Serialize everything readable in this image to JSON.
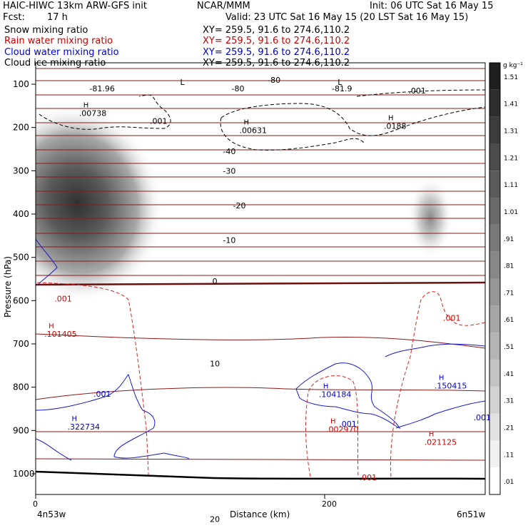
{
  "header": {
    "model": "HAIC-HIWC 13km ARW-GFS init",
    "org": "NCAR/MMM",
    "init": "Init: 06 UTC Sat 16 May 15",
    "fcst_label": "Fcst:",
    "fcst_value": "17 h",
    "valid": "Valid: 23 UTC Sat 16 May 15 (20 LST Sat 16 May 15)"
  },
  "fields": [
    {
      "name": "Snow mixing ratio",
      "xy": "XY= 259.5, 91.6 to 274.6,110.2",
      "color": "#000000"
    },
    {
      "name": "Rain water mixing ratio",
      "xy": "XY= 259.5, 91.6 to 274.6,110.2",
      "color": "#cc0000"
    },
    {
      "name": "Cloud water mixing ratio",
      "xy": "XY= 259.5, 91.6 to 274.6,110.2",
      "color": "#0000cc"
    },
    {
      "name": "Cloud ice mixing ratio",
      "xy": "XY= 259.5, 91.6 to 274.6,110.2",
      "color": "#000000"
    }
  ],
  "chart_data": {
    "type": "heatmap",
    "xlabel": "Distance (km)",
    "ylabel": "Pressure (hPa)",
    "xlim": [
      0,
      300
    ],
    "ylim": [
      1050,
      50
    ],
    "x_ticks": [
      "0",
      "200"
    ],
    "x_tick_values": [
      0,
      200
    ],
    "y_ticks": [
      "100",
      "200",
      "300",
      "400",
      "500",
      "600",
      "700",
      "800",
      "900",
      "1000"
    ],
    "y_tick_values": [
      100,
      200,
      300,
      400,
      500,
      600,
      700,
      800,
      900,
      1000
    ],
    "left_endpoint": "4n53w",
    "right_endpoint": "6n51w",
    "colorbar": {
      "unit": "g kg⁻¹",
      "levels": [
        "1.51",
        "1.41",
        "1.31",
        "1.21",
        "1.11",
        "1.01",
        ".91",
        ".81",
        ".71",
        ".61",
        ".51",
        ".41",
        ".31",
        ".21",
        ".11",
        ".01"
      ]
    },
    "snow_shading": [
      {
        "x": 28,
        "p": 330,
        "max": 1.51
      },
      {
        "x": 272,
        "p": 400,
        "max": 0.51
      }
    ],
    "temperature_labels": [
      {
        "text": "-81.96",
        "x": 46,
        "p": 110
      },
      {
        "text": "-80",
        "x": 140,
        "p": 110
      },
      {
        "text": "-80",
        "x": 165,
        "p": 90
      },
      {
        "text": "-81.9",
        "x": 212,
        "p": 110
      },
      {
        "text": "-40",
        "x": 134,
        "p": 255
      },
      {
        "text": "-30",
        "x": 134,
        "p": 300
      },
      {
        "text": "-20",
        "x": 141,
        "p": 380
      },
      {
        "text": "-10",
        "x": 134,
        "p": 460
      },
      {
        "text": "0",
        "x": 124,
        "p": 555
      },
      {
        "text": "10",
        "x": 124,
        "p": 745
      },
      {
        "text": "20",
        "x": 124,
        "p": 1105
      }
    ],
    "lows": [
      {
        "text": "L",
        "x": 100,
        "p": 95
      },
      {
        "text": "L",
        "x": 209,
        "p": 95
      }
    ],
    "highs": [
      {
        "value": ".00738",
        "x": 29,
        "p": 160,
        "field": "cloud ice"
      },
      {
        "value": ".00631",
        "x": 140,
        "p": 200,
        "field": "cloud ice"
      },
      {
        "value": ".0188",
        "x": 240,
        "p": 190,
        "field": "cloud ice"
      },
      {
        "value": ".101405",
        "x": 5,
        "p": 670,
        "field": "rain"
      },
      {
        "value": ".002970",
        "x": 200,
        "p": 890,
        "field": "rain"
      },
      {
        "value": ".021125",
        "x": 268,
        "p": 920,
        "field": "rain"
      },
      {
        "value": ".322734",
        "x": 21,
        "p": 885,
        "field": "cloud water"
      },
      {
        "value": ".104184",
        "x": 195,
        "p": 810,
        "field": "cloud water"
      },
      {
        "value": ".150415",
        "x": 275,
        "p": 790,
        "field": "cloud water"
      }
    ],
    "contour_value_labels": [
      {
        "text": ".001",
        "x": 79,
        "p": 185,
        "color": "#000000"
      },
      {
        "text": ".001",
        "x": 258,
        "p": 115,
        "color": "#000000"
      },
      {
        "text": ".001",
        "x": 13,
        "p": 595,
        "color": "#cc0000"
      },
      {
        "text": ".001",
        "x": 282,
        "p": 640,
        "color": "#cc0000"
      },
      {
        "text": ".001",
        "x": 224,
        "p": 1008,
        "color": "#cc0000"
      },
      {
        "text": ".001",
        "x": 40,
        "p": 815,
        "color": "#0000cc"
      },
      {
        "text": ".001",
        "x": 210,
        "p": 885,
        "color": "#0000cc"
      },
      {
        "text": ".001",
        "x": 303,
        "p": 870,
        "color": "#0000cc"
      }
    ]
  }
}
